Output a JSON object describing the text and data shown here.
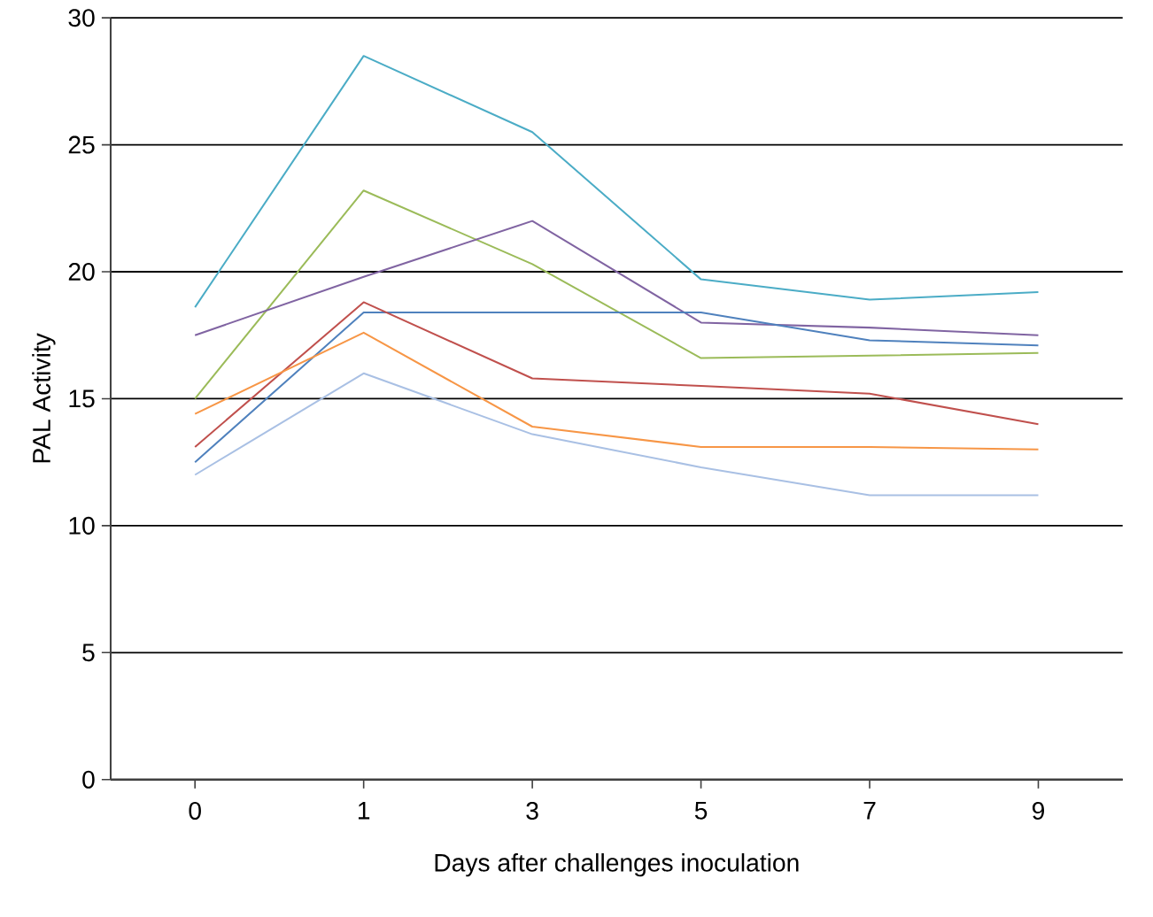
{
  "chart_data": {
    "type": "line",
    "xlabel": "Days after challenges inoculation",
    "ylabel": "PAL Activity",
    "categories": [
      "0",
      "1",
      "3",
      "5",
      "7",
      "9"
    ],
    "series": [
      {
        "color": "#4bacc6",
        "values": [
          18.6,
          28.5,
          25.5,
          19.7,
          18.9,
          19.2
        ]
      },
      {
        "color": "#9bbb59",
        "values": [
          15.0,
          23.2,
          20.3,
          16.6,
          16.7,
          16.8
        ]
      },
      {
        "color": "#8064a2",
        "values": [
          17.5,
          19.8,
          22.0,
          18.0,
          17.8,
          17.5
        ]
      },
      {
        "color": "#4f81bd",
        "values": [
          12.5,
          18.4,
          18.4,
          18.4,
          17.3,
          17.1
        ]
      },
      {
        "color": "#c0504d",
        "values": [
          13.1,
          18.8,
          15.8,
          15.5,
          15.2,
          14.0
        ]
      },
      {
        "color": "#f79646",
        "values": [
          14.4,
          17.6,
          13.9,
          13.1,
          13.1,
          13.0
        ]
      },
      {
        "color": "#a9c0e4",
        "values": [
          12.0,
          16.0,
          13.6,
          12.3,
          11.2,
          11.2
        ]
      }
    ],
    "ylim": [
      0,
      30
    ],
    "yticks": [
      0,
      5,
      10,
      15,
      20,
      25,
      30
    ],
    "grid": "y",
    "marker": "none",
    "line_style": "solid"
  }
}
